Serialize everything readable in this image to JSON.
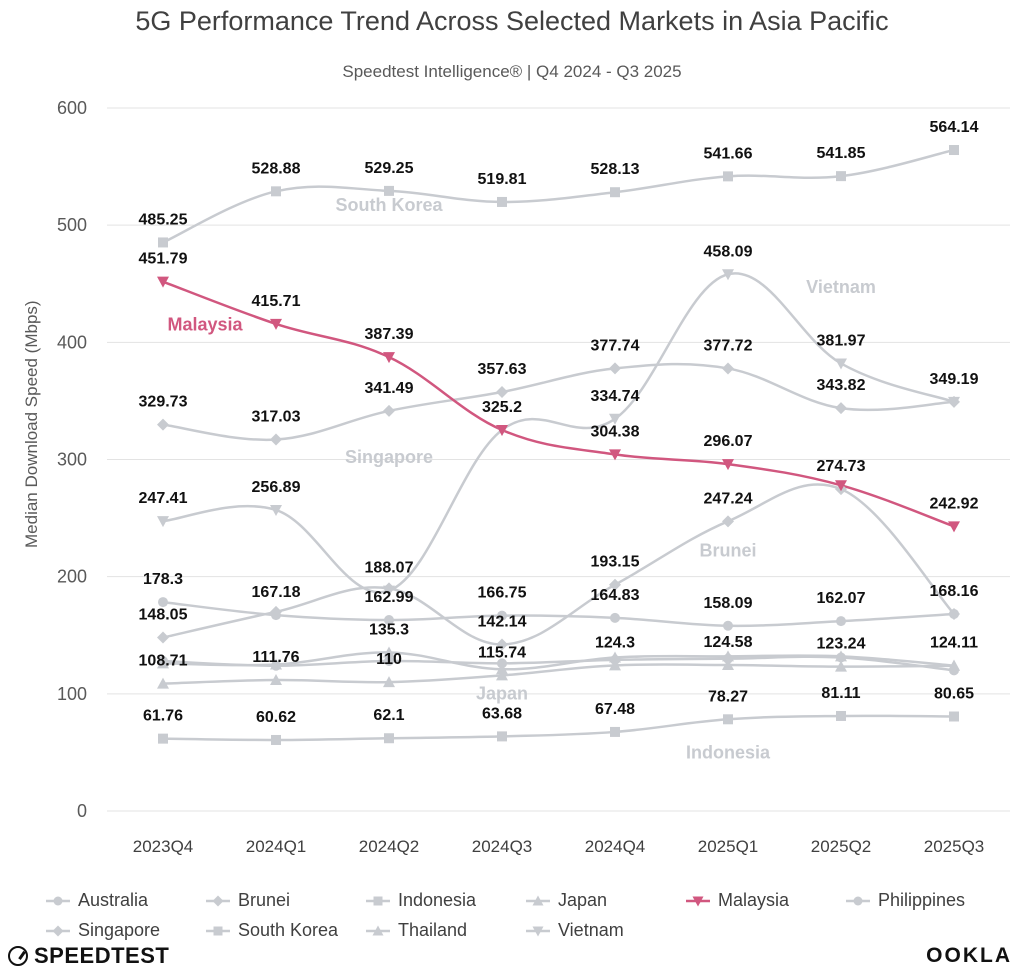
{
  "title": "5G Performance Trend Across Selected Markets in Asia Pacific",
  "subtitle": "Speedtest Intelligence® | Q4 2024 - Q3 2025",
  "brand_left": "SPEEDTEST",
  "brand_right": "OOKLA",
  "chart_data": {
    "type": "line",
    "title": "5G Performance Trend Across Selected Markets in Asia Pacific",
    "subtitle": "Speedtest Intelligence® | Q4 2024 - Q3 2025",
    "ylabel": "Median Download Speed (Mbps)",
    "xlabel": "",
    "ylim": [
      0,
      600
    ],
    "yticks": [
      0,
      100,
      200,
      300,
      400,
      500,
      600
    ],
    "grid": true,
    "legend_position": "bottom",
    "categories": [
      "2023Q4",
      "2024Q1",
      "2024Q2",
      "2024Q3",
      "2024Q4",
      "2025Q1",
      "2025Q2",
      "2025Q3"
    ],
    "series": [
      {
        "name": "Australia",
        "marker": "circle",
        "color": "#c8cbd0",
        "values": [
          178.3,
          167.18,
          162.99,
          166.75,
          164.83,
          158.09,
          162.07,
          168.16
        ],
        "labels": [
          "178.3",
          "167.18",
          "162.99",
          "166.75",
          "164.83",
          "158.09",
          "162.07",
          "168.16"
        ]
      },
      {
        "name": "Brunei",
        "marker": "diamond",
        "color": "#c8cbd0",
        "values": [
          148.05,
          170,
          190,
          142.14,
          193.15,
          247.24,
          274.73,
          168.16
        ],
        "labels": [
          "148.05",
          null,
          null,
          "142.14",
          "193.15",
          "247.24",
          "274.73",
          null
        ]
      },
      {
        "name": "Indonesia",
        "marker": "square",
        "color": "#c8cbd0",
        "values": [
          61.76,
          60.62,
          62.1,
          63.68,
          67.48,
          78.27,
          81.11,
          80.65
        ],
        "labels": [
          "61.76",
          "60.62",
          "62.1",
          "63.68",
          "67.48",
          "78.27",
          "81.11",
          "80.65"
        ]
      },
      {
        "name": "Japan",
        "marker": "triangle",
        "color": "#c8cbd0",
        "values": [
          126,
          125,
          135.3,
          121,
          131,
          132,
          132,
          124.11
        ],
        "labels": [
          null,
          null,
          "135.3",
          null,
          null,
          null,
          null,
          "124.11"
        ]
      },
      {
        "name": "Malaysia",
        "marker": "triangle-down",
        "color": "#d1577f",
        "values": [
          451.79,
          415.71,
          387.39,
          325.2,
          304.38,
          296.07,
          278,
          242.92
        ],
        "labels": [
          "451.79",
          "415.71",
          "387.39",
          "325.2",
          "304.38",
          "296.07",
          null,
          "242.92"
        ]
      },
      {
        "name": "Philippines",
        "marker": "circle",
        "color": "#c8cbd0",
        "values": [
          128,
          124,
          128,
          126,
          129,
          130,
          131,
          120
        ],
        "labels": [
          null,
          null,
          null,
          null,
          null,
          null,
          null,
          null
        ]
      },
      {
        "name": "Singapore",
        "marker": "diamond",
        "color": "#c8cbd0",
        "values": [
          329.73,
          317.03,
          341.49,
          357.63,
          377.74,
          377.72,
          343.82,
          349.19
        ],
        "labels": [
          "329.73",
          "317.03",
          "341.49",
          "357.63",
          "377.74",
          "377.72",
          "343.82",
          "349.19"
        ]
      },
      {
        "name": "South Korea",
        "marker": "square",
        "color": "#c8cbd0",
        "values": [
          485.25,
          528.88,
          529.25,
          519.81,
          528.13,
          541.66,
          541.85,
          564.14
        ],
        "labels": [
          "485.25",
          "528.88",
          "529.25",
          "519.81",
          "528.13",
          "541.66",
          "541.85",
          "564.14"
        ]
      },
      {
        "name": "Thailand",
        "marker": "triangle",
        "color": "#c8cbd0",
        "values": [
          108.71,
          111.76,
          110,
          115.74,
          124.3,
          124.58,
          123.24,
          124
        ],
        "labels": [
          "108.71",
          "111.76",
          "110",
          "115.74",
          "124.3",
          "124.58",
          "123.24",
          null
        ]
      },
      {
        "name": "Vietnam",
        "marker": "triangle-down",
        "color": "#c8cbd0",
        "values": [
          247.41,
          256.89,
          188.07,
          325.2,
          334.74,
          458.09,
          381.97,
          349.19
        ],
        "labels": [
          "247.41",
          "256.89",
          "188.07",
          null,
          "334.74",
          "458.09",
          "381.97",
          null
        ]
      }
    ],
    "annotations": [
      {
        "text": "South Korea",
        "x": "2024Q2",
        "y": 512
      },
      {
        "text": "Malaysia",
        "x": "2023Q4",
        "y": 410
      },
      {
        "text": "Vietnam",
        "x": "2025Q2",
        "y": 442
      },
      {
        "text": "Singapore",
        "x": "2024Q2",
        "y": 297
      },
      {
        "text": "Brunei",
        "x": "2025Q1",
        "y": 217
      },
      {
        "text": "Japan",
        "x": "2024Q3",
        "y": 95
      },
      {
        "text": "Indonesia",
        "x": "2025Q1",
        "y": 45
      }
    ]
  }
}
